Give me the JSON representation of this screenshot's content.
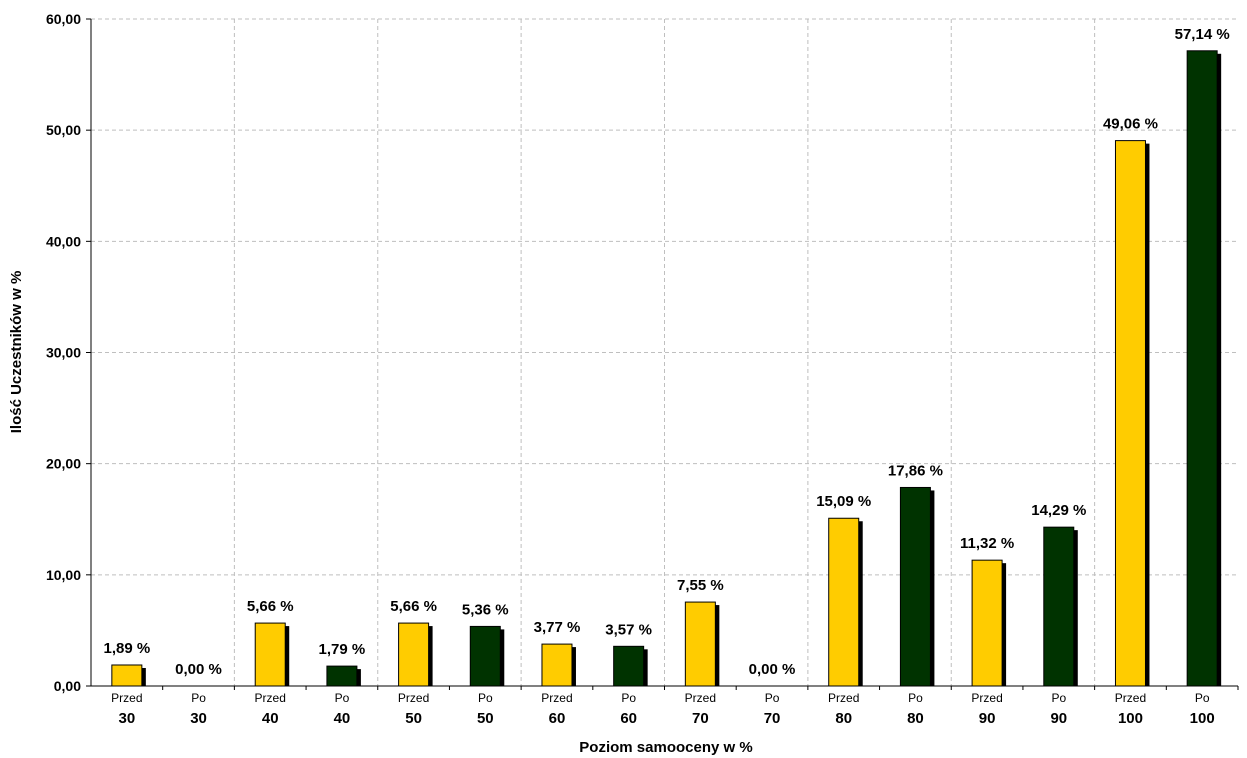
{
  "chart_data": {
    "type": "bar",
    "title": "",
    "xlabel": "Poziom samooceny w %",
    "ylabel": "Ilość Uczestników w %",
    "ylim": [
      0,
      60
    ],
    "yticks": [
      "0,00",
      "10,00",
      "20,00",
      "30,00",
      "40,00",
      "50,00",
      "60,00"
    ],
    "grid": true,
    "legend": "none",
    "colors": {
      "przed": "#ffcc00",
      "po": "#003300",
      "shadow": "#000000",
      "grid": "#bfbfbf"
    },
    "categories": [
      {
        "top": "Przed",
        "bottom": "30",
        "group": "przed",
        "value": 1.89,
        "label": "1,89 %"
      },
      {
        "top": "Po",
        "bottom": "30",
        "group": "po",
        "value": 0.0,
        "label": "0,00 %"
      },
      {
        "top": "Przed",
        "bottom": "40",
        "group": "przed",
        "value": 5.66,
        "label": "5,66 %"
      },
      {
        "top": "Po",
        "bottom": "40",
        "group": "po",
        "value": 1.79,
        "label": "1,79 %"
      },
      {
        "top": "Przed",
        "bottom": "50",
        "group": "przed",
        "value": 5.66,
        "label": "5,66 %"
      },
      {
        "top": "Po",
        "bottom": "50",
        "group": "po",
        "value": 5.36,
        "label": "5,36 %"
      },
      {
        "top": "Przed",
        "bottom": "60",
        "group": "przed",
        "value": 3.77,
        "label": "3,77 %"
      },
      {
        "top": "Po",
        "bottom": "60",
        "group": "po",
        "value": 3.57,
        "label": "3,57 %"
      },
      {
        "top": "Przed",
        "bottom": "70",
        "group": "przed",
        "value": 7.55,
        "label": "7,55 %"
      },
      {
        "top": "Po",
        "bottom": "70",
        "group": "po",
        "value": 0.0,
        "label": "0,00 %"
      },
      {
        "top": "Przed",
        "bottom": "80",
        "group": "przed",
        "value": 15.09,
        "label": "15,09 %"
      },
      {
        "top": "Po",
        "bottom": "80",
        "group": "po",
        "value": 17.86,
        "label": "17,86 %"
      },
      {
        "top": "Przed",
        "bottom": "90",
        "group": "przed",
        "value": 11.32,
        "label": "11,32 %"
      },
      {
        "top": "Po",
        "bottom": "90",
        "group": "po",
        "value": 14.29,
        "label": "14,29 %"
      },
      {
        "top": "Przed",
        "bottom": "100",
        "group": "przed",
        "value": 49.06,
        "label": "49,06 %"
      },
      {
        "top": "Po",
        "bottom": "100",
        "group": "po",
        "value": 57.14,
        "label": "57,14 %"
      }
    ]
  }
}
